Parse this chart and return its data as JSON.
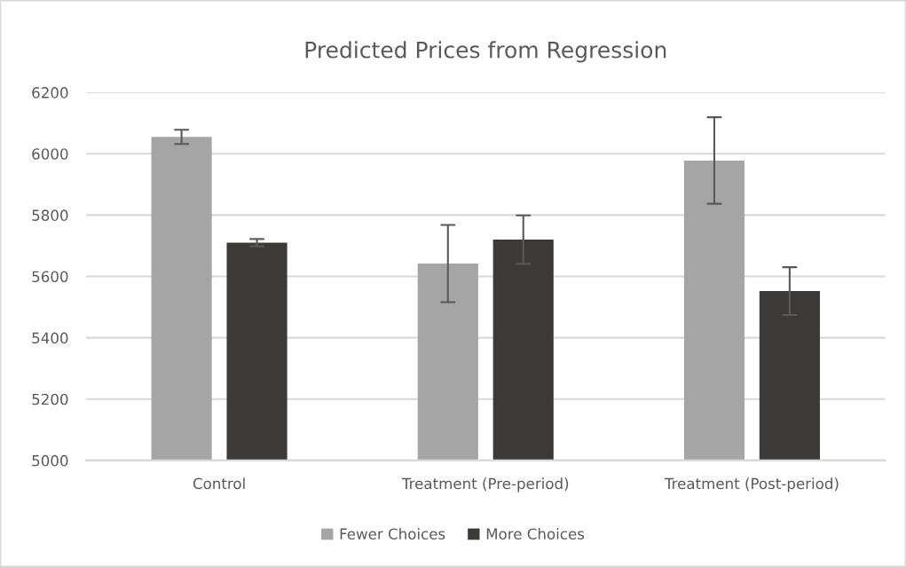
{
  "chart_data": {
    "type": "bar",
    "title": "Predicted Prices from Regression",
    "categories": [
      "Control",
      "Treatment (Pre-period)",
      "Treatment (Post-period)"
    ],
    "series": [
      {
        "name": "Fewer Choices",
        "color": "#a5a5a5",
        "values": [
          6055,
          5642,
          5978
        ],
        "errors": [
          23,
          126,
          141
        ]
      },
      {
        "name": "More Choices",
        "color": "#3b3a38",
        "values": [
          5710,
          5720,
          5552
        ],
        "errors": [
          12,
          79,
          78
        ]
      }
    ],
    "ylim": [
      5000,
      6200
    ],
    "yticks": [
      5000,
      5200,
      5400,
      5600,
      5800,
      6000,
      6200
    ],
    "grid": "y",
    "legend": "bottom"
  }
}
